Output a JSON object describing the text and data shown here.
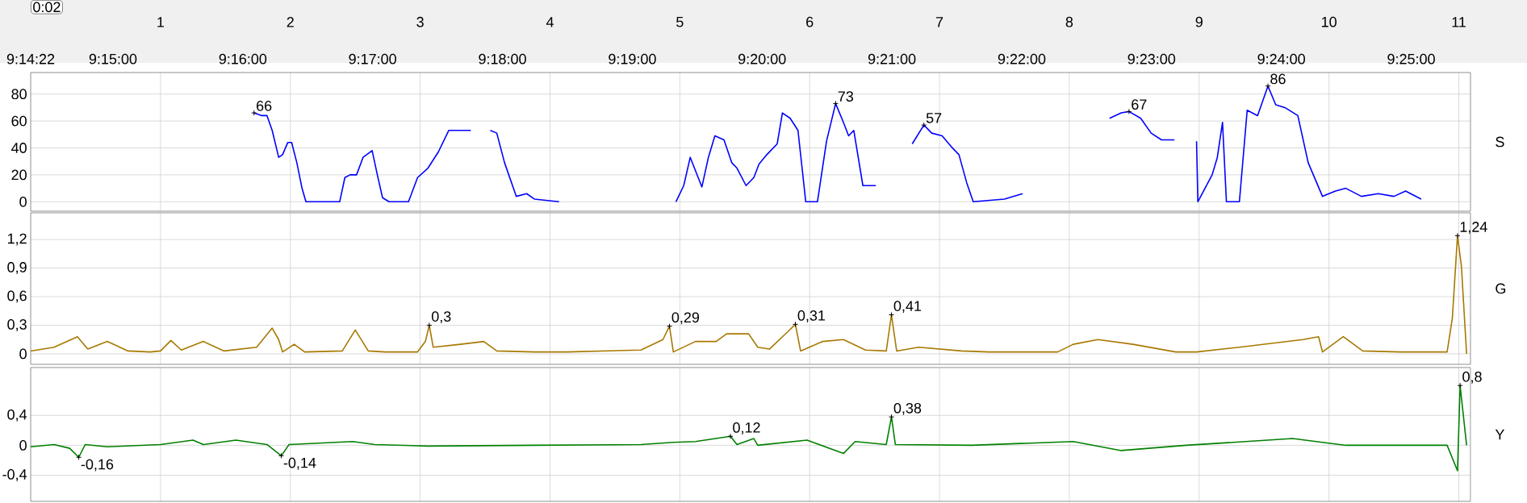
{
  "chart_data": [
    {
      "type": "line",
      "ylabel": "S",
      "xlim": [
        0,
        11.09
      ],
      "ylim": [
        -7,
        96
      ],
      "yticks": [
        0,
        20,
        40,
        60,
        80
      ],
      "xticks": [
        1,
        2,
        3,
        4,
        5,
        6,
        7,
        8,
        9,
        10,
        11
      ],
      "x2lim": [
        9.23944,
        9.42428
      ],
      "x2ticks": [
        {
          "value": 9.23944,
          "label": "9:14:22"
        },
        {
          "value": 9.25,
          "label": "9:15:00"
        },
        {
          "value": 9.26667,
          "label": "9:16:00"
        },
        {
          "value": 9.28333,
          "label": "9:17:00"
        },
        {
          "value": 9.3,
          "label": "9:18:00"
        },
        {
          "value": 9.31667,
          "label": "9:19:00"
        },
        {
          "value": 9.33333,
          "label": "9:20:00"
        },
        {
          "value": 9.35,
          "label": "9:21:00"
        },
        {
          "value": 9.36667,
          "label": "9:22:00"
        },
        {
          "value": 9.38333,
          "label": "9:23:00"
        },
        {
          "value": 9.4,
          "label": "9:24:00"
        },
        {
          "value": 9.41667,
          "label": "9:25:00"
        }
      ],
      "grid": true,
      "marker": "none",
      "line_style": "solid",
      "series": [
        {
          "color": "#0000ff",
          "x": [
            1.72,
            1.78,
            1.82,
            1.86,
            1.91,
            1.94,
            1.98,
            2.01,
            2.05,
            2.09,
            2.12,
            2.38,
            2.42,
            2.46,
            2.51,
            2.56,
            2.63,
            2.67,
            2.71,
            2.76,
            2.91,
            2.98,
            3.06,
            3.14,
            3.22,
            3.39,
            3.46,
            3.54,
            3.59,
            3.65,
            3.74,
            3.82,
            3.88,
            4.07,
            4.5,
            4.97,
            5.03,
            5.08,
            5.17,
            5.22,
            5.27,
            5.34,
            5.4,
            5.44,
            5.51,
            5.57,
            5.61,
            5.67,
            5.75,
            5.79,
            5.85,
            5.91,
            5.97,
            6.06,
            6.13,
            6.2,
            6.26,
            6.3,
            6.34,
            6.41,
            6.51,
            6.65,
            6.79,
            6.88,
            6.94,
            7.02,
            7.09,
            7.15,
            7.21,
            7.26,
            7.5,
            7.64,
            8.0,
            8.31,
            8.4,
            8.46,
            8.55,
            8.63,
            8.71,
            8.81,
            8.9,
            8.98,
            8.99,
            9.1,
            9.14,
            9.18,
            9.21,
            9.31,
            9.37,
            9.45,
            9.53,
            9.59,
            9.66,
            9.76,
            9.84,
            9.95,
            10.05,
            10.13,
            10.25,
            10.38,
            10.5,
            10.59,
            10.71
          ],
          "values": [
            66,
            64,
            64,
            53,
            33,
            35,
            44,
            44,
            29,
            10,
            0,
            0,
            18,
            20,
            20,
            33,
            38,
            20,
            3,
            0,
            0,
            18,
            25,
            37,
            53,
            53,
            null,
            53,
            51,
            29,
            4,
            6,
            2,
            0,
            null,
            0,
            12,
            33,
            11,
            33,
            49,
            46,
            29,
            25,
            12,
            18,
            28,
            35,
            43,
            66,
            62,
            53,
            0,
            0,
            45,
            73,
            59,
            49,
            53,
            12,
            12,
            null,
            43,
            57,
            51,
            49,
            41,
            35,
            14,
            0,
            2,
            6,
            null,
            62,
            66,
            67,
            62,
            51,
            46,
            46,
            null,
            45,
            0,
            20,
            33,
            59,
            0,
            0,
            68,
            64,
            86,
            72,
            70,
            64,
            29,
            4,
            8,
            10,
            4,
            6,
            4,
            8,
            2
          ]
        }
      ],
      "annotations": [
        {
          "text": "66",
          "x": 1.72,
          "y": 66
        },
        {
          "text": "73",
          "x": 6.2,
          "y": 73
        },
        {
          "text": "57",
          "x": 6.88,
          "y": 57
        },
        {
          "text": "67",
          "x": 8.46,
          "y": 67
        },
        {
          "text": "86",
          "x": 9.53,
          "y": 86
        },
        "0:02"
      ]
    },
    {
      "type": "line",
      "ylabel": "G",
      "xlim": [
        0,
        11.09
      ],
      "ylim": [
        -0.11,
        1.48
      ],
      "tick_labels": "y",
      "yticks": [
        0,
        {
          "value": 0.3,
          "label": "0,3"
        },
        {
          "value": 0.6,
          "label": "0,6"
        },
        {
          "value": 0.9,
          "label": "0,9"
        },
        {
          "value": 1.2,
          "label": "1,2"
        }
      ],
      "xticks": [
        1,
        2,
        3,
        4,
        5,
        6,
        7,
        8,
        9,
        10,
        11
      ],
      "grid": true,
      "marker": "none",
      "line_style": "solid",
      "series": [
        {
          "color": "#a87800",
          "x": [
            0,
            0.18,
            0.36,
            0.44,
            0.59,
            0.75,
            0.92,
            1.0,
            1.08,
            1.16,
            1.33,
            1.49,
            1.74,
            1.86,
            1.91,
            1.94,
            2.03,
            2.11,
            2.4,
            2.5,
            2.6,
            2.73,
            2.98,
            3.04,
            3.07,
            3.1,
            3.31,
            3.49,
            3.59,
            3.88,
            4.13,
            4.7,
            4.87,
            4.92,
            4.95,
            5.12,
            5.28,
            5.36,
            5.53,
            5.6,
            5.69,
            5.83,
            5.89,
            5.93,
            6.1,
            6.26,
            6.43,
            6.59,
            6.63,
            6.67,
            6.84,
            7.17,
            7.38,
            7.91,
            8.03,
            8.22,
            8.49,
            8.82,
            8.98,
            9.31,
            9.8,
            9.92,
            9.95,
            10.11,
            10.26,
            10.55,
            10.91,
            10.95,
            10.99,
            11.02,
            11.06
          ],
          "values": [
            0.03,
            0.07,
            0.18,
            0.05,
            0.13,
            0.03,
            0.02,
            0.03,
            0.14,
            0.04,
            0.13,
            0.03,
            0.07,
            0.27,
            0.15,
            0.02,
            0.1,
            0.02,
            0.03,
            0.25,
            0.03,
            0.02,
            0.02,
            0.13,
            0.3,
            0.07,
            0.1,
            0.13,
            0.03,
            0.02,
            0.02,
            0.04,
            0.15,
            0.29,
            0.02,
            0.13,
            0.13,
            0.21,
            0.21,
            0.07,
            0.05,
            0.23,
            0.31,
            0.03,
            0.13,
            0.15,
            0.04,
            0.03,
            0.41,
            0.03,
            0.07,
            0.03,
            0.02,
            0.02,
            0.1,
            0.15,
            0.1,
            0.02,
            0.02,
            0.07,
            0.15,
            0.18,
            0.02,
            0.18,
            0.03,
            0.02,
            0.02,
            0.37,
            1.24,
            0.92,
            0
          ]
        }
      ],
      "annotations": [
        {
          "text": "0,3",
          "x": 3.07,
          "y": 0.3
        },
        {
          "text": "0,29",
          "x": 4.92,
          "y": 0.29
        },
        {
          "text": "0,31",
          "x": 5.89,
          "y": 0.31
        },
        {
          "text": "0,41",
          "x": 6.63,
          "y": 0.41
        },
        {
          "text": "1,24",
          "x": 10.99,
          "y": 1.24
        }
      ]
    },
    {
      "type": "line",
      "ylabel": "Y",
      "xlim": [
        0,
        11.09
      ],
      "ylim": [
        -0.75,
        1.04
      ],
      "tick_labels": "y",
      "yticks": [
        {
          "value": -0.4,
          "label": "-0,4"
        },
        0,
        {
          "value": 0.4,
          "label": "0,4"
        }
      ],
      "xticks": [
        1,
        2,
        3,
        4,
        5,
        6,
        7,
        8,
        9,
        10,
        11
      ],
      "grid": true,
      "marker": "none",
      "line_style": "solid",
      "series": [
        {
          "color": "#008000",
          "x": [
            0,
            0.18,
            0.3,
            0.37,
            0.42,
            0.59,
            1.0,
            1.25,
            1.33,
            1.58,
            1.82,
            1.93,
            1.99,
            2.48,
            2.65,
            3.06,
            3.88,
            4.7,
            4.95,
            5.12,
            5.39,
            5.44,
            5.57,
            5.6,
            5.98,
            6.26,
            6.35,
            6.59,
            6.63,
            6.66,
            7.25,
            8.03,
            8.4,
            8.9,
            9.72,
            10.13,
            10.91,
            10.99,
            11.01,
            11.06
          ],
          "values": [
            -0.02,
            0.01,
            -0.04,
            -0.16,
            0.01,
            -0.02,
            0.01,
            0.07,
            0.01,
            0.07,
            0.01,
            -0.14,
            0.01,
            0.05,
            0.01,
            -0.01,
            0,
            0.01,
            0.04,
            0.05,
            0.12,
            0.01,
            0.09,
            0,
            0.07,
            -0.11,
            0.05,
            0.01,
            0.38,
            0.01,
            0,
            0.05,
            -0.07,
            0,
            0.09,
            0,
            0,
            -0.34,
            0.8,
            0
          ]
        }
      ],
      "annotations": [
        {
          "text": "-0,16",
          "x": 0.37,
          "y": -0.16
        },
        {
          "text": "-0,14",
          "x": 1.93,
          "y": -0.14
        },
        {
          "text": "0,12",
          "x": 5.39,
          "y": 0.12
        },
        {
          "text": "0,38",
          "x": 6.63,
          "y": 0.38
        },
        {
          "text": "0,8",
          "x": 11.01,
          "y": 0.8
        }
      ]
    }
  ]
}
